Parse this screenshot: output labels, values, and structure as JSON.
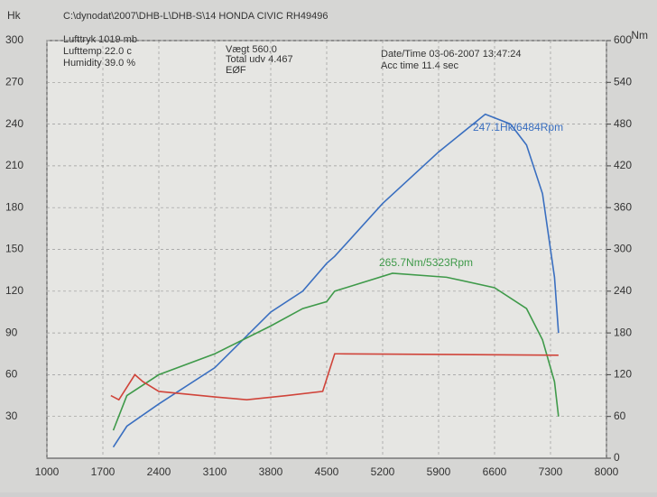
{
  "header": {
    "path": "C:\\dynodat\\2007\\DHB-L\\DHB-S\\14 HONDA CIVIC RH49496",
    "pressure": "Lufttryk  1019 mb",
    "temperature": "Lufttemp  22.0 c",
    "humidity": "Humidity  39.0 %",
    "weight": "Vægt      560.0",
    "total": "Total udv 4.467",
    "code": "EØF",
    "datetime": "Date/Time  03-06-2007  13:47:24",
    "acc_time": "Acc time  11.4 sec"
  },
  "chart_data": {
    "type": "line",
    "y_label": "Hk",
    "y2_label": "Nm",
    "annotations": [
      "247.1Hk/6484Rpm",
      "265.7Nm/5323Rpm"
    ],
    "xlim": [
      1000,
      8000
    ],
    "xticks": [
      1000,
      1700,
      2400,
      3100,
      3800,
      4500,
      5200,
      5900,
      6600,
      7300,
      8000
    ],
    "ylim": [
      0,
      300
    ],
    "yticks": [
      30,
      60,
      90,
      120,
      150,
      180,
      210,
      240,
      270,
      300
    ],
    "y2lim": [
      0,
      600
    ],
    "y2ticks": [
      0,
      60,
      120,
      180,
      240,
      300,
      360,
      420,
      480,
      540,
      600
    ],
    "grid": true,
    "series": [
      {
        "color": "#3a6fc0",
        "x": [
          1830,
          2000,
          2400,
          3100,
          3800,
          4200,
          4500,
          4600,
          5200,
          5900,
          6484,
          6800,
          7000,
          7200,
          7350,
          7400
        ],
        "values": [
          8,
          23,
          39,
          65,
          105,
          120,
          140,
          145,
          183,
          220,
          247.1,
          240,
          225,
          190,
          130,
          90
        ]
      },
      {
        "color": "#3f9a4a",
        "axis": "y2",
        "x": [
          1830,
          2000,
          2400,
          3100,
          3800,
          4200,
          4500,
          4600,
          5323,
          6000,
          6600,
          7000,
          7200,
          7350,
          7400
        ],
        "values": [
          40,
          90,
          120,
          150,
          190,
          215,
          225,
          240,
          265.7,
          260,
          245,
          215,
          170,
          110,
          60
        ]
      },
      {
        "color": "#d0443a",
        "x": [
          1800,
          1900,
          2100,
          2200,
          2400,
          3100,
          3500,
          4000,
          4450,
          4600,
          4650,
          7400
        ],
        "values": [
          45,
          42,
          60,
          55,
          48,
          44,
          42,
          45,
          48,
          75,
          75,
          74
        ]
      }
    ]
  }
}
